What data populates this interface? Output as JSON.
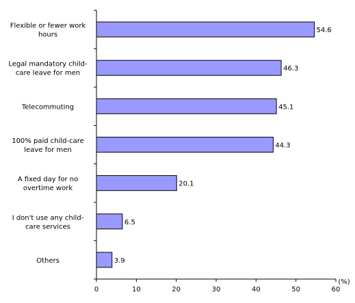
{
  "chart_data": {
    "type": "bar",
    "orientation": "horizontal",
    "categories": [
      [
        "Flexible or fewer work",
        "hours"
      ],
      [
        "Legal mandatory child-",
        "care leave for men"
      ],
      [
        "Telecommuting"
      ],
      [
        "100% paid child-care",
        "leave for men"
      ],
      [
        "A fixed day for no",
        "overtime work"
      ],
      [
        "I don't use any child-",
        "care services"
      ],
      [
        "Others"
      ]
    ],
    "values": [
      54.6,
      46.3,
      45.1,
      44.3,
      20.1,
      6.5,
      3.9
    ],
    "value_labels": [
      "54.6",
      "46.3",
      "45.1",
      "44.3",
      "20.1",
      "6.5",
      "3.9"
    ],
    "xlim": [
      0,
      60
    ],
    "xticks": [
      0,
      10,
      20,
      30,
      40,
      50,
      60
    ],
    "xtick_labels": [
      "0",
      "10",
      "20",
      "30",
      "40",
      "50",
      "60"
    ],
    "unit": "(%)",
    "title": "",
    "xlabel": "",
    "ylabel": "",
    "grid": false,
    "bar_color": "#9999ff",
    "bar_edge_color": "#000000",
    "axis_color": "#000000"
  }
}
